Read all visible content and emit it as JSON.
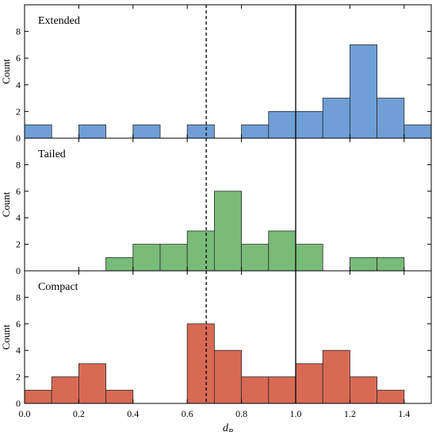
{
  "chart_data": {
    "type": "bar",
    "layout": "three stacked histogram panels sharing x-axis",
    "xlabel": "d",
    "xlabel_subscript": "R",
    "ylabel": "Count",
    "xlim": [
      0.0,
      1.5
    ],
    "x_ticks": [
      "0.0",
      "0.2",
      "0.4",
      "0.6",
      "0.8",
      "1.0",
      "1.2",
      "1.4"
    ],
    "x_tick_values": [
      0.0,
      0.2,
      0.4,
      0.6,
      0.8,
      1.0,
      1.2,
      1.4
    ],
    "ylim": [
      0,
      10
    ],
    "y_ticks": [
      "0",
      "2",
      "4",
      "6",
      "8"
    ],
    "y_tick_values": [
      0,
      2,
      4,
      6,
      8
    ],
    "grid": false,
    "bin_edges": [
      0.0,
      0.1,
      0.2,
      0.3,
      0.4,
      0.5,
      0.6,
      0.7,
      0.8,
      0.9,
      1.0,
      1.1,
      1.2,
      1.3,
      1.4,
      1.5
    ],
    "reference_lines": [
      {
        "x": 0.67,
        "style": "dashed"
      },
      {
        "x": 1.0,
        "style": "solid"
      }
    ],
    "panels": [
      {
        "name": "Extended",
        "color": "#6f9fd6",
        "counts": [
          1,
          0,
          1,
          0,
          1,
          0,
          1,
          0,
          1,
          2,
          2,
          3,
          7,
          3,
          1
        ]
      },
      {
        "name": "Tailed",
        "color": "#79bb79",
        "counts": [
          0,
          0,
          0,
          1,
          2,
          2,
          3,
          6,
          2,
          3,
          2,
          0,
          1,
          1,
          0
        ]
      },
      {
        "name": "Compact",
        "color": "#d86a55",
        "counts": [
          1,
          2,
          3,
          1,
          0,
          0,
          6,
          4,
          2,
          2,
          3,
          4,
          2,
          1,
          0
        ]
      }
    ]
  }
}
